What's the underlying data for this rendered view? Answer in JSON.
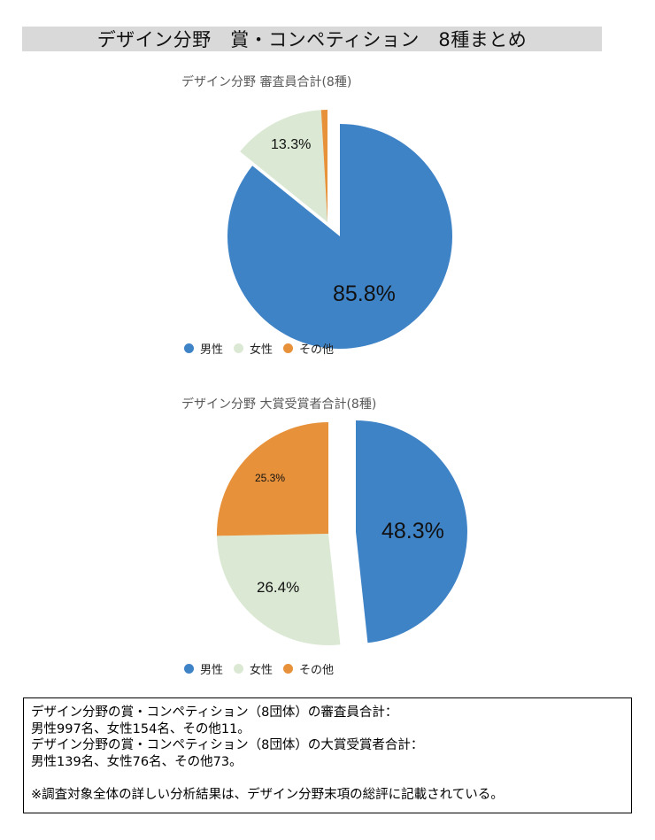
{
  "header": {
    "title": "デザイン分野　賞・コンペティション　8種まとめ"
  },
  "colors": {
    "male": "#3f83c7",
    "female": "#dbe9d4",
    "other": "#e7913a"
  },
  "legend": [
    {
      "label": "男性",
      "color": "#3f83c7"
    },
    {
      "label": "女性",
      "color": "#dbe9d4"
    },
    {
      "label": "その他",
      "color": "#e7913a"
    }
  ],
  "chart_data": [
    {
      "type": "pie",
      "title": "デザイン分野  審査員合計(8種)",
      "categories": [
        "男性",
        "女性",
        "その他"
      ],
      "values": [
        85.8,
        13.3,
        0.9
      ],
      "counts": [
        997,
        154,
        11
      ],
      "labels": [
        "85.8%",
        "13.3%",
        ""
      ],
      "legend_position": "bottom",
      "exploded": [
        "女性",
        "その他"
      ]
    },
    {
      "type": "pie",
      "title": "デザイン分野  大賞受賞者合計(8種)",
      "categories": [
        "男性",
        "女性",
        "その他"
      ],
      "values": [
        48.3,
        26.4,
        25.3
      ],
      "counts": [
        139,
        76,
        73
      ],
      "labels": [
        "48.3%",
        "26.4%",
        "25.3%"
      ],
      "legend_position": "bottom",
      "exploded": [
        "女性",
        "その他"
      ]
    }
  ],
  "notes": {
    "lines": [
      "デザイン分野の賞・コンペティション（8団体）の審査員合計：",
      "男性997名、女性154名、その他11。",
      "デザイン分野の賞・コンペティション（8団体）の大賞受賞者合計：",
      "男性139名、女性76名、その他73。",
      "",
      "※調査対象全体の詳しい分析結果は、デザイン分野末項の総評に記載されている。"
    ]
  }
}
